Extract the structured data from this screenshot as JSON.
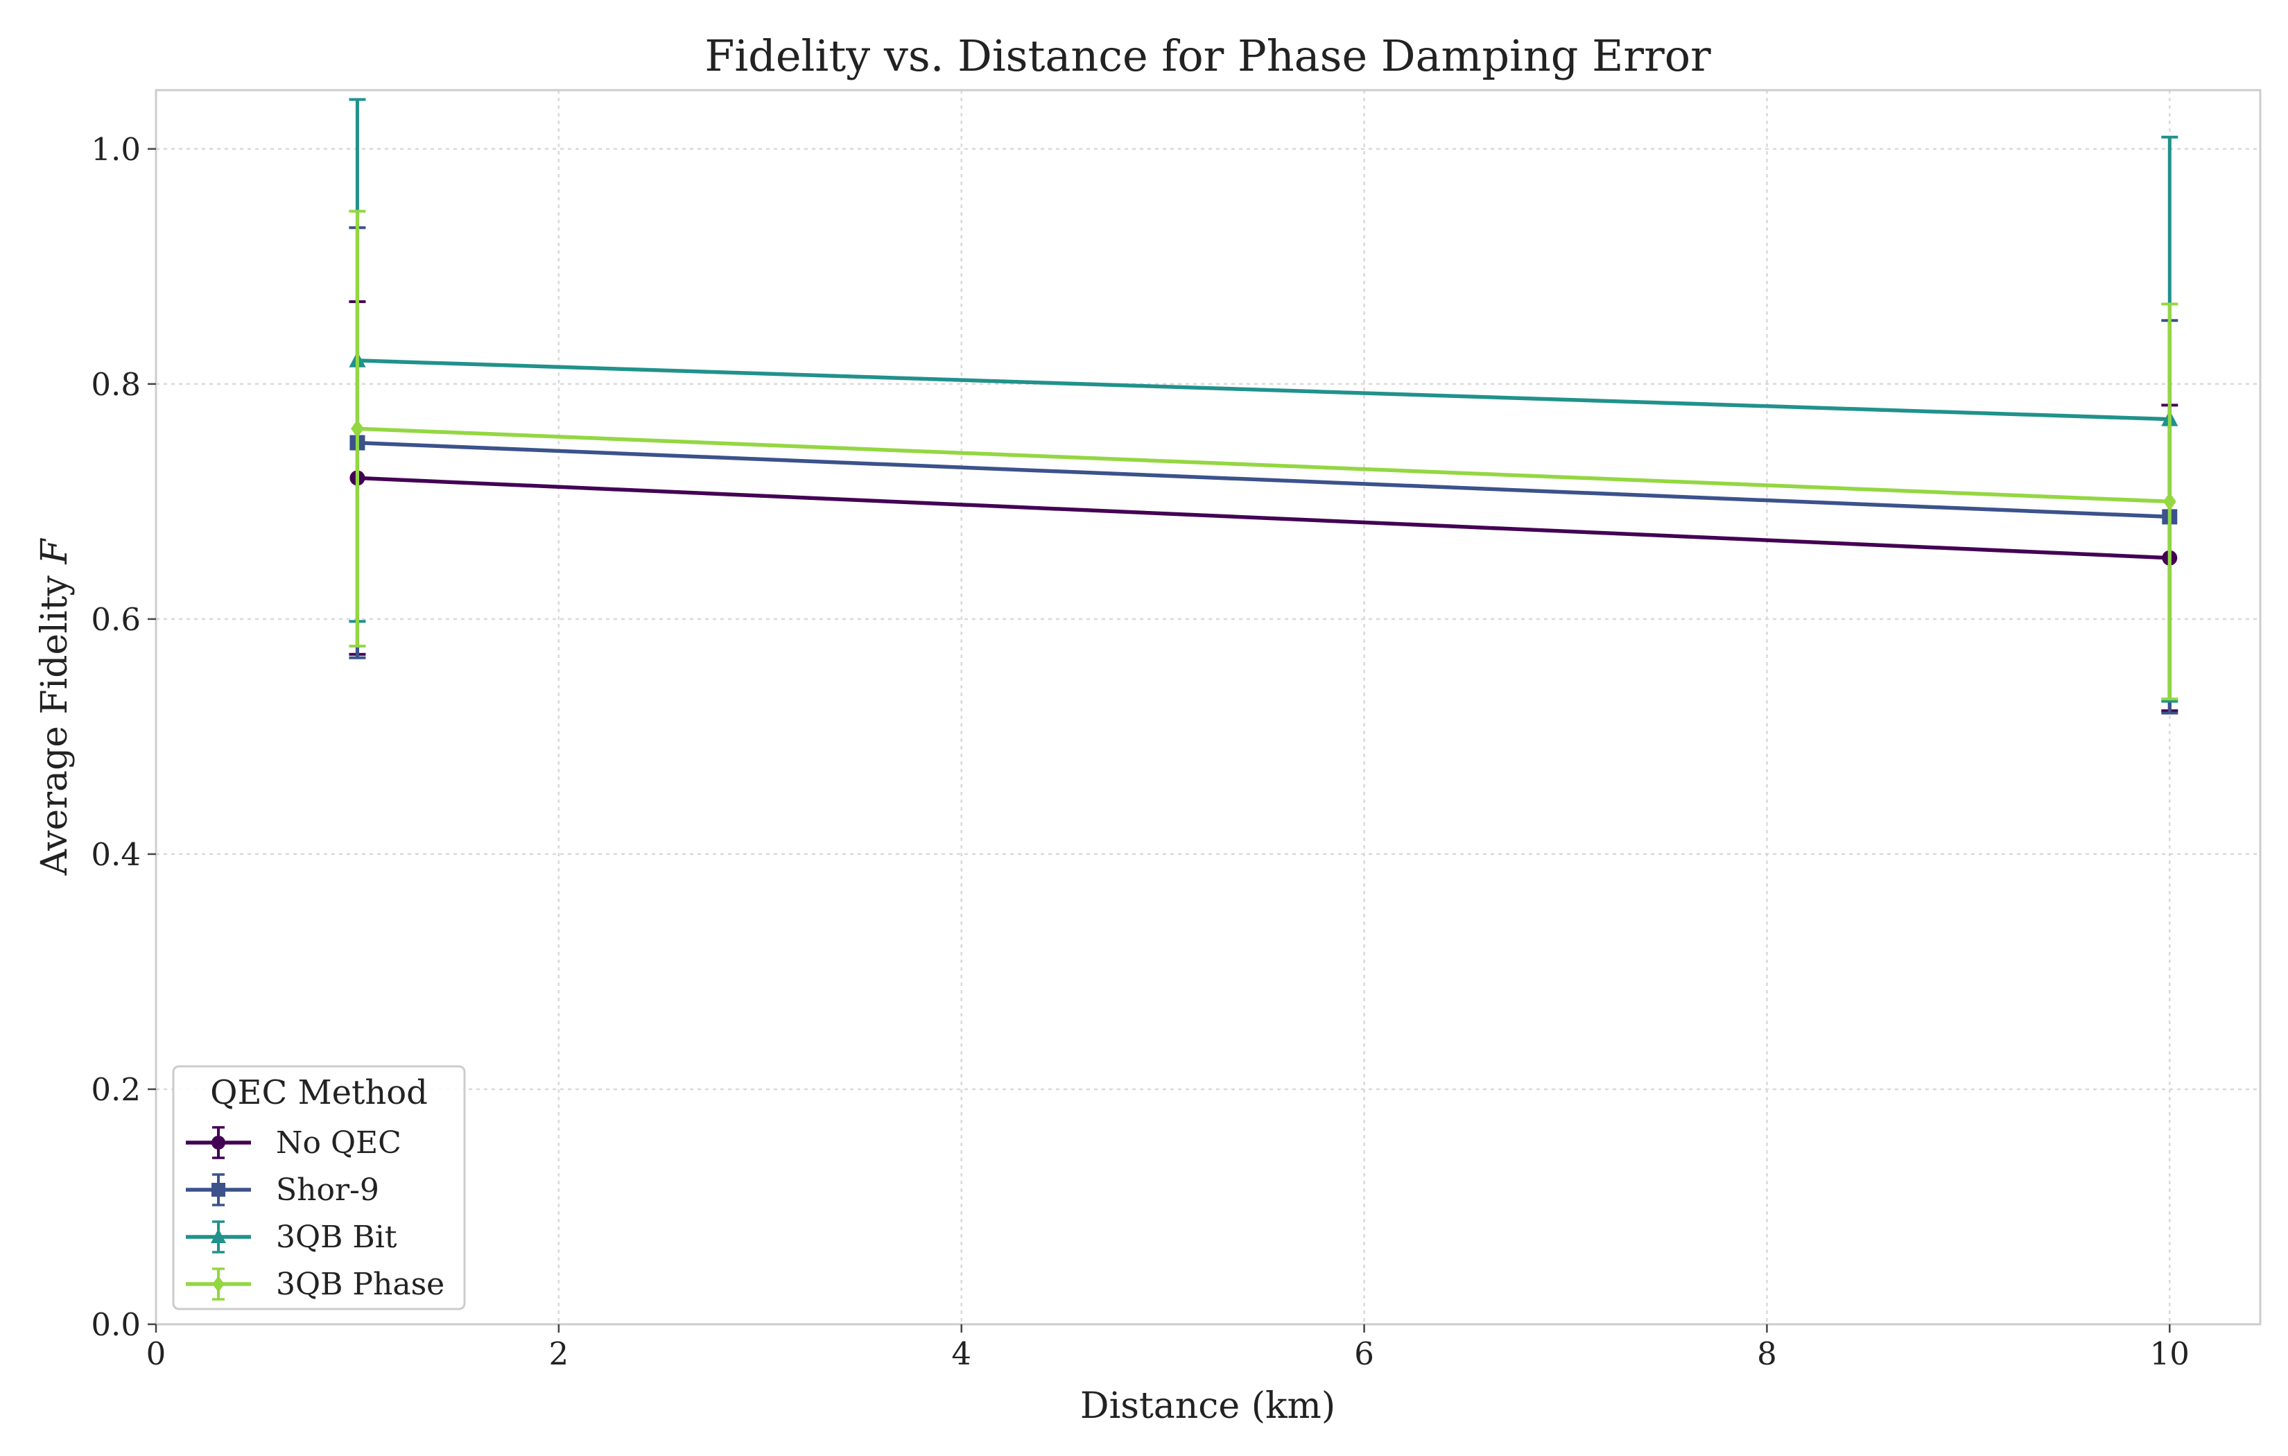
{
  "chart_data": {
    "type": "line",
    "title": "Fidelity vs. Distance for Phase Damping Error",
    "xlabel": "Distance (km)",
    "ylabel": "Average Fidelity",
    "ylabel_symbol": "F",
    "xlim": [
      0,
      10.45
    ],
    "ylim": [
      0,
      1.05
    ],
    "xticks": [
      0,
      2,
      4,
      6,
      8,
      10
    ],
    "yticks": [
      0.0,
      0.2,
      0.4,
      0.6,
      0.8,
      1.0
    ],
    "xtick_labels": [
      "0",
      "2",
      "4",
      "6",
      "8",
      "10"
    ],
    "ytick_labels": [
      "0.0",
      "0.2",
      "0.4",
      "0.6",
      "0.8",
      "1.0"
    ],
    "grid": true,
    "legend": {
      "title": "QEC Method",
      "placement": "lower-left"
    },
    "x": [
      1,
      10
    ],
    "series": [
      {
        "name": "No QEC",
        "values": [
          0.72,
          0.652
        ],
        "errors": [
          0.15,
          0.13
        ],
        "color": "#440154",
        "marker": "circle"
      },
      {
        "name": "Shor-9",
        "values": [
          0.75,
          0.687
        ],
        "errors": [
          0.183,
          0.167
        ],
        "color": "#3b528b",
        "marker": "square"
      },
      {
        "name": "3QB Bit",
        "values": [
          0.82,
          0.77
        ],
        "errors": [
          0.222,
          0.24
        ],
        "color": "#21918c",
        "marker": "triangle"
      },
      {
        "name": "3QB Phase",
        "values": [
          0.762,
          0.7
        ],
        "errors": [
          0.185,
          0.168
        ],
        "color": "#93d741",
        "marker": "diamond"
      }
    ]
  }
}
